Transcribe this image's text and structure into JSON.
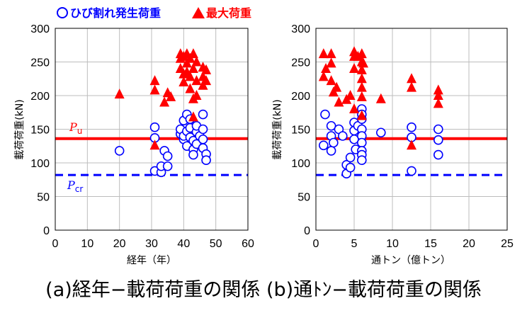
{
  "legend": {
    "crack_label": "ひび割れ発生荷重",
    "max_label": "最大荷重",
    "crack_color": "#0000ff",
    "max_color": "#ff0000"
  },
  "reference_lines": {
    "pu": {
      "symbol": "P",
      "subscript": "u",
      "value": 136,
      "color": "#ff0000",
      "style": "solid"
    },
    "pcr": {
      "symbol": "P",
      "subscript": "cr",
      "value": 82,
      "color": "#0000ff",
      "style": "dashed"
    }
  },
  "caption": "(a)経年−載荷荷重の関係 (b)通ﾄﾝ−載荷荷重の関係",
  "chart_data": [
    {
      "type": "scatter",
      "panel": "a",
      "xlabel": "経年（年）",
      "ylabel": "載荷荷重(kN)",
      "xlim": [
        0,
        60
      ],
      "ylim": [
        0,
        300
      ],
      "xticks": [
        0,
        10,
        20,
        30,
        40,
        50,
        60
      ],
      "yticks": [
        0,
        50,
        100,
        150,
        200,
        250,
        300
      ],
      "grid": true,
      "series": [
        {
          "name": "ひび割れ発生荷重",
          "marker": "circle-open",
          "color": "#0000ff",
          "points": [
            [
              20,
              118
            ],
            [
              31,
              153
            ],
            [
              31,
              137
            ],
            [
              31,
              88
            ],
            [
              33,
              86
            ],
            [
              33,
              95
            ],
            [
              34,
              118
            ],
            [
              35,
              95
            ],
            [
              35,
              110
            ],
            [
              39,
              143
            ],
            [
              39,
              150
            ],
            [
              40,
              135
            ],
            [
              40,
              140
            ],
            [
              40,
              163
            ],
            [
              41,
              172
            ],
            [
              41,
              147
            ],
            [
              41,
              125
            ],
            [
              42,
              138
            ],
            [
              42,
              152
            ],
            [
              42,
              165
            ],
            [
              43,
              120
            ],
            [
              43,
              133
            ],
            [
              43,
              112
            ],
            [
              44,
              146
            ],
            [
              44,
              128
            ],
            [
              44,
              155
            ],
            [
              45,
              140
            ],
            [
              46,
              172
            ],
            [
              46,
              150
            ],
            [
              46,
              135
            ],
            [
              46,
              122
            ],
            [
              47,
              113
            ],
            [
              47,
              104
            ]
          ]
        },
        {
          "name": "最大荷重",
          "marker": "triangle-filled",
          "color": "#ff0000",
          "points": [
            [
              20,
              202
            ],
            [
              31,
              126
            ],
            [
              31,
              208
            ],
            [
              31,
              222
            ],
            [
              34,
              190
            ],
            [
              35,
              204
            ],
            [
              36,
              198
            ],
            [
              39,
              255
            ],
            [
              39,
              262
            ],
            [
              39,
              240
            ],
            [
              40,
              232
            ],
            [
              40,
              220
            ],
            [
              40,
              258
            ],
            [
              41,
              262
            ],
            [
              41,
              248
            ],
            [
              41,
              235
            ],
            [
              42,
              255
            ],
            [
              42,
              228
            ],
            [
              42,
              210
            ],
            [
              43,
              262
            ],
            [
              43,
              240
            ],
            [
              43,
              195
            ],
            [
              43,
              168
            ],
            [
              44,
              250
            ],
            [
              44,
              222
            ],
            [
              44,
              200
            ],
            [
              46,
              242
            ],
            [
              46,
              228
            ],
            [
              46,
              215
            ],
            [
              47,
              238
            ],
            [
              47,
              222
            ]
          ]
        }
      ]
    },
    {
      "type": "scatter",
      "panel": "b",
      "xlabel": "通トン（億トン）",
      "ylabel": "載荷荷重(kN)",
      "xlim": [
        0,
        25
      ],
      "ylim": [
        0,
        300
      ],
      "xticks": [
        0,
        5,
        10,
        15,
        20,
        25
      ],
      "yticks": [
        0,
        50,
        100,
        150,
        200,
        250,
        300
      ],
      "grid": true,
      "series": [
        {
          "name": "ひび割れ発生荷重",
          "marker": "circle-open",
          "color": "#0000ff",
          "points": [
            [
              1.2,
              172
            ],
            [
              1.0,
              126
            ],
            [
              2.0,
              155
            ],
            [
              2.0,
              140
            ],
            [
              2.0,
              118
            ],
            [
              2.3,
              130
            ],
            [
              3.0,
              150
            ],
            [
              3.5,
              140
            ],
            [
              4.0,
              97
            ],
            [
              4.0,
              84
            ],
            [
              4.5,
              108
            ],
            [
              4.5,
              93
            ],
            [
              5.0,
              160
            ],
            [
              5.0,
              148
            ],
            [
              5.0,
              135
            ],
            [
              5.2,
              120
            ],
            [
              5.5,
              155
            ],
            [
              6.0,
              180
            ],
            [
              6.0,
              172
            ],
            [
              6.0,
              165
            ],
            [
              6.0,
              150
            ],
            [
              6.0,
              140
            ],
            [
              6.0,
              130
            ],
            [
              6.0,
              118
            ],
            [
              6.0,
              112
            ],
            [
              6.0,
              104
            ],
            [
              8.5,
              145
            ],
            [
              12.5,
              153
            ],
            [
              12.5,
              138
            ],
            [
              12.5,
              88
            ],
            [
              16.0,
              150
            ],
            [
              16.0,
              134
            ],
            [
              16.0,
              112
            ]
          ]
        },
        {
          "name": "最大荷重",
          "marker": "triangle-filled",
          "color": "#ff0000",
          "points": [
            [
              1.0,
              262
            ],
            [
              1.0,
              228
            ],
            [
              1.3,
              240
            ],
            [
              2.0,
              262
            ],
            [
              2.0,
              248
            ],
            [
              2.0,
              222
            ],
            [
              2.3,
              205
            ],
            [
              2.7,
              212
            ],
            [
              3.0,
              190
            ],
            [
              4.0,
              194
            ],
            [
              4.5,
              200
            ],
            [
              5.0,
              265
            ],
            [
              5.0,
              258
            ],
            [
              5.0,
              240
            ],
            [
              5.0,
              180
            ],
            [
              5.5,
              258
            ],
            [
              6.0,
              262
            ],
            [
              6.0,
              250
            ],
            [
              6.0,
              238
            ],
            [
              6.0,
              225
            ],
            [
              6.0,
              212
            ],
            [
              6.0,
              198
            ],
            [
              6.0,
              170
            ],
            [
              6.2,
              248
            ],
            [
              8.5,
              195
            ],
            [
              12.5,
              225
            ],
            [
              12.5,
              212
            ],
            [
              12.5,
              126
            ],
            [
              16.0,
              208
            ],
            [
              16.0,
              200
            ],
            [
              16.0,
              188
            ]
          ]
        }
      ]
    }
  ]
}
